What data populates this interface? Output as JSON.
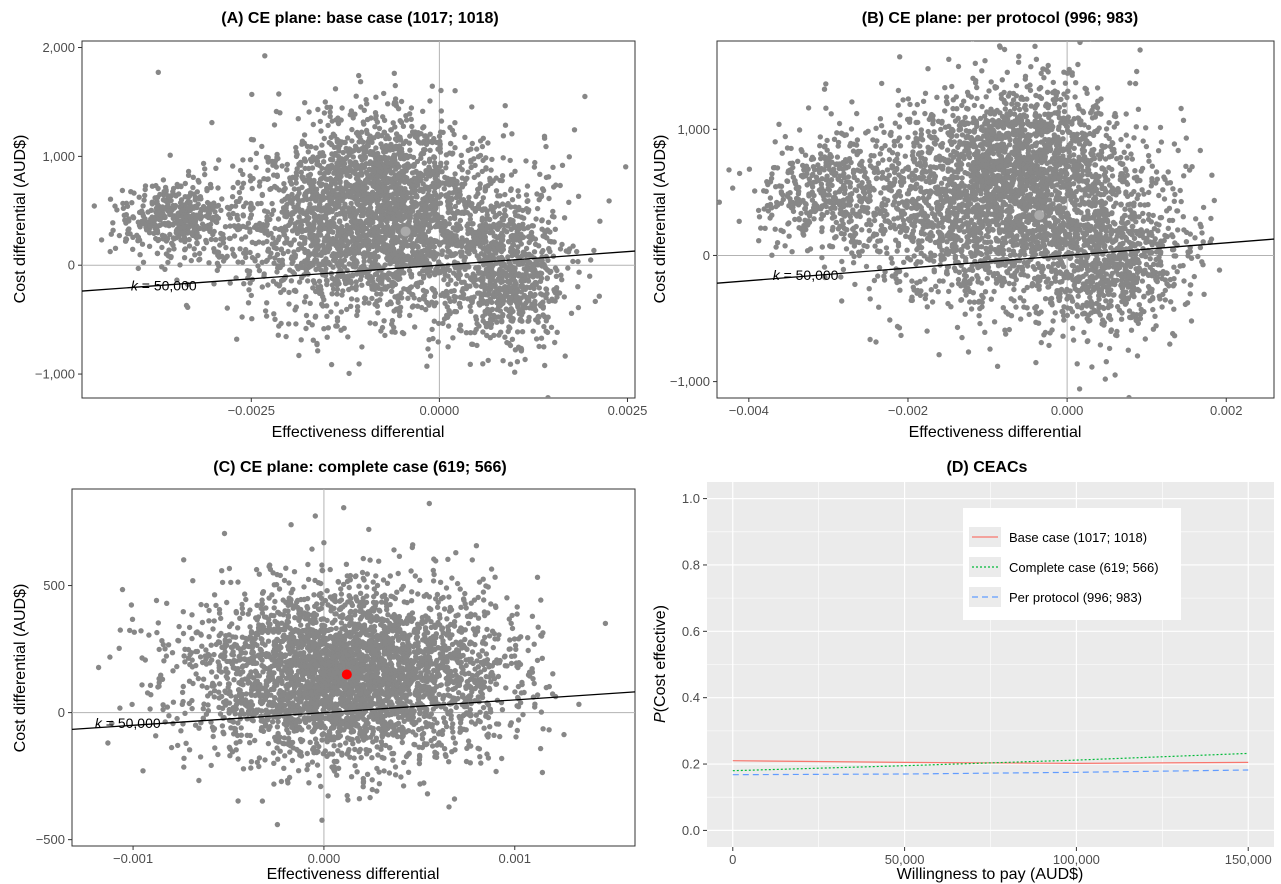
{
  "chart_data": [
    {
      "id": "A",
      "type": "scatter",
      "title": "(A) CE plane: base case (1017; 1018)",
      "xlabel": "Effectiveness differential",
      "ylabel": "Cost differential (AUD$)",
      "xlim": [
        -0.00475,
        0.0026
      ],
      "ylim": [
        -1220,
        2060
      ],
      "xticks": [
        {
          "value": -0.0025,
          "label": "−0.0025"
        },
        {
          "value": 0,
          "label": "0.0000"
        },
        {
          "value": 0.0025,
          "label": "0.0025"
        }
      ],
      "yticks": [
        {
          "value": -1000,
          "label": "−1,000"
        },
        {
          "value": 0,
          "label": "0"
        },
        {
          "value": 1000,
          "label": "1,000"
        },
        {
          "value": 2000,
          "label": "2,000"
        }
      ],
      "point_color": "#878787",
      "point_cloud": [
        {
          "cx": -0.0008,
          "cy": 350,
          "sx": 0.00095,
          "sy": 420,
          "n": 2600
        },
        {
          "cx": -0.0035,
          "cy": 420,
          "sx": 0.00035,
          "sy": 170,
          "n": 420
        },
        {
          "cx": 0.0009,
          "cy": -100,
          "sx": 0.00035,
          "sy": 330,
          "n": 650
        },
        {
          "cx": -0.0008,
          "cy": 900,
          "sx": 0.0005,
          "sy": 320,
          "n": 450
        }
      ],
      "mean_point": {
        "x": -0.00045,
        "y": 310,
        "color": "#aaaaaa"
      },
      "wtp_line": {
        "k": 50000,
        "label_k": "k",
        "label_rest": " = 50,000",
        "label_x": -0.0041,
        "label_y": -185
      }
    },
    {
      "id": "B",
      "type": "scatter",
      "title": "(B) CE plane: per protocol (996; 983)",
      "xlabel": "Effectiveness differential",
      "ylabel": "Cost differential (AUD$)",
      "xlim": [
        -0.0044,
        0.0026
      ],
      "ylim": [
        -1130,
        1700
      ],
      "xticks": [
        {
          "value": -0.004,
          "label": "−0.004"
        },
        {
          "value": -0.002,
          "label": "−0.002"
        },
        {
          "value": 0,
          "label": "0.000"
        },
        {
          "value": 0.002,
          "label": "0.002"
        }
      ],
      "yticks": [
        {
          "value": -1000,
          "label": "−1,000"
        },
        {
          "value": 0,
          "label": "0"
        },
        {
          "value": 1000,
          "label": "1,000"
        }
      ],
      "point_color": "#878787",
      "point_cloud": [
        {
          "cx": -0.0008,
          "cy": 420,
          "sx": 0.0009,
          "sy": 400,
          "n": 2600
        },
        {
          "cx": -0.003,
          "cy": 500,
          "sx": 0.0005,
          "sy": 230,
          "n": 420
        },
        {
          "cx": 0.0006,
          "cy": -80,
          "sx": 0.00045,
          "sy": 310,
          "n": 650
        },
        {
          "cx": -0.0006,
          "cy": 900,
          "sx": 0.00045,
          "sy": 260,
          "n": 450
        }
      ],
      "mean_point": {
        "x": -0.00035,
        "y": 320,
        "color": "#aaaaaa"
      },
      "wtp_line": {
        "k": 50000,
        "label_k": "k",
        "label_rest": " = 50,000",
        "label_x": -0.0037,
        "label_y": -155
      }
    },
    {
      "id": "C",
      "type": "scatter",
      "title": "(C) CE plane: complete case (619; 566)",
      "xlabel": "Effectiveness differential",
      "ylabel": "Cost differential (AUD$)",
      "xlim": [
        -0.00132,
        0.00163
      ],
      "ylim": [
        -525,
        880
      ],
      "xticks": [
        {
          "value": -0.001,
          "label": "−0.001"
        },
        {
          "value": 0,
          "label": "0.000"
        },
        {
          "value": 0.001,
          "label": "0.001"
        }
      ],
      "yticks": [
        {
          "value": -500,
          "label": "−500"
        },
        {
          "value": 0,
          "label": "0"
        },
        {
          "value": 500,
          "label": "500"
        }
      ],
      "point_color": "#878787",
      "point_cloud": [
        {
          "cx": 0.00012,
          "cy": 150,
          "sx": 0.0004,
          "sy": 170,
          "n": 3600
        }
      ],
      "mean_point": {
        "x": 0.00012,
        "y": 150,
        "color": "#ff0000"
      },
      "wtp_line": {
        "k": 50000,
        "label_k": "k",
        "label_rest": " = 50,000",
        "label_x": -0.0012,
        "label_y": -40
      }
    },
    {
      "id": "D",
      "type": "line",
      "title": "(D) CEACs",
      "xlabel": "Willingness to pay (AUD$)",
      "ylabel_italic": "P",
      "ylabel_rest": "(Cost effective)",
      "xlim": [
        -7500,
        157500
      ],
      "ylim": [
        -0.05,
        1.05
      ],
      "xticks": [
        {
          "value": 0,
          "label": "0"
        },
        {
          "value": 50000,
          "label": "50,000"
        },
        {
          "value": 100000,
          "label": "100,000"
        },
        {
          "value": 150000,
          "label": "150,000"
        }
      ],
      "yticks": [
        {
          "value": 0,
          "label": "0.0"
        },
        {
          "value": 0.2,
          "label": "0.2"
        },
        {
          "value": 0.4,
          "label": "0.4"
        },
        {
          "value": 0.6,
          "label": "0.6"
        },
        {
          "value": 0.8,
          "label": "0.8"
        },
        {
          "value": 1.0,
          "label": "1.0"
        }
      ],
      "grid": true,
      "legend_position": "top-right",
      "series": [
        {
          "name": "Base case (1017; 1018)",
          "color": "#F8766D",
          "dash": "solid",
          "x": [
            0,
            50000,
            100000,
            150000
          ],
          "y": [
            0.21,
            0.205,
            0.202,
            0.205
          ]
        },
        {
          "name": "Complete case (619; 566)",
          "color": "#00BA38",
          "dash": "dotted",
          "x": [
            0,
            50000,
            100000,
            150000
          ],
          "y": [
            0.18,
            0.195,
            0.212,
            0.232
          ]
        },
        {
          "name": "Per protocol (996; 983)",
          "color": "#619CFF",
          "dash": "dashed",
          "x": [
            0,
            50000,
            100000,
            150000
          ],
          "y": [
            0.168,
            0.17,
            0.175,
            0.182
          ]
        }
      ]
    }
  ]
}
